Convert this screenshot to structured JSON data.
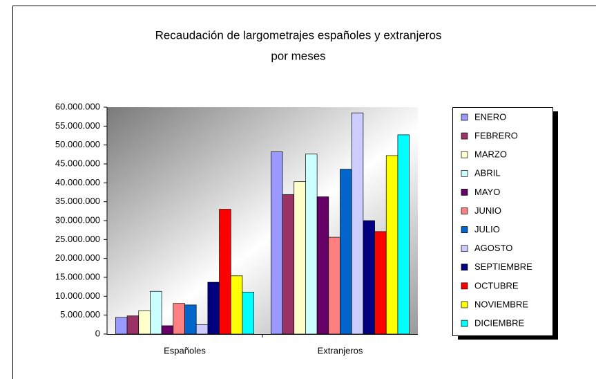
{
  "chart_data": {
    "type": "bar",
    "title": [
      "Recaudación de largometrajes españoles y extranjeros",
      "por meses"
    ],
    "categories": [
      "Españoles",
      "Extranjeros"
    ],
    "series": [
      {
        "name": "ENERO",
        "color": "#9999FF",
        "values": [
          4400000,
          48200000
        ]
      },
      {
        "name": "FEBRERO",
        "color": "#993366",
        "values": [
          4800000,
          36900000
        ]
      },
      {
        "name": "MARZO",
        "color": "#FFFFCC",
        "values": [
          6200000,
          40300000
        ]
      },
      {
        "name": "ABRIL",
        "color": "#CCFFFF",
        "values": [
          11300000,
          47600000
        ]
      },
      {
        "name": "MAYO",
        "color": "#660066",
        "values": [
          2200000,
          36300000
        ]
      },
      {
        "name": "JUNIO",
        "color": "#FF8080",
        "values": [
          8100000,
          25600000
        ]
      },
      {
        "name": "JULIO",
        "color": "#0066CC",
        "values": [
          7700000,
          43600000
        ]
      },
      {
        "name": "AGOSTO",
        "color": "#CCCCFF",
        "values": [
          2500000,
          58500000
        ]
      },
      {
        "name": "SEPTIEMBRE",
        "color": "#000080",
        "values": [
          13700000,
          30000000
        ]
      },
      {
        "name": "OCTUBRE",
        "color": "#FF0000",
        "values": [
          33000000,
          27100000
        ]
      },
      {
        "name": "NOVIEMBRE",
        "color": "#FFFF00",
        "values": [
          15400000,
          47200000
        ]
      },
      {
        "name": "DICIEMBRE",
        "color": "#00FFFF",
        "values": [
          11100000,
          52700000
        ]
      }
    ],
    "ylim": [
      0,
      60000000
    ],
    "yticks": [
      0,
      {
        "value": 5000000,
        "label": "5.000.000"
      },
      {
        "value": 10000000,
        "label": "10.000.000"
      },
      {
        "value": 15000000,
        "label": "15.000.000"
      },
      {
        "value": 20000000,
        "label": "20.000.000"
      },
      {
        "value": 25000000,
        "label": "25.000.000"
      },
      {
        "value": 30000000,
        "label": "30.000.000"
      },
      {
        "value": 35000000,
        "label": "35.000.000"
      },
      {
        "value": 40000000,
        "label": "40.000.000"
      },
      {
        "value": 45000000,
        "label": "45.000.000"
      },
      {
        "value": 50000000,
        "label": "50.000.000"
      },
      {
        "value": 55000000,
        "label": "55.000.000"
      },
      {
        "value": 60000000,
        "label": "60.000.000"
      }
    ],
    "legend": "right"
  }
}
